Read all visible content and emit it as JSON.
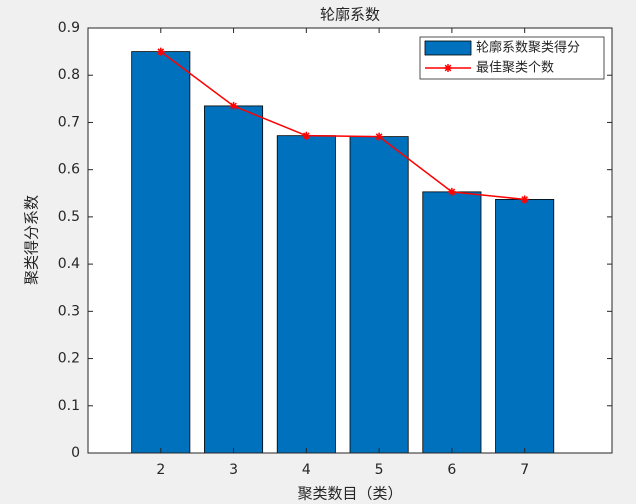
{
  "chart_data": {
    "type": "bar",
    "title": "轮廓系数",
    "xlabel": "聚类数目（类）",
    "ylabel": "聚类得分系数",
    "x": [
      2,
      3,
      4,
      5,
      6,
      7
    ],
    "series": [
      {
        "name": "轮廓系数聚类得分",
        "type": "bar",
        "color": "#0072bd",
        "values": [
          0.85,
          0.735,
          0.672,
          0.67,
          0.553,
          0.537
        ]
      },
      {
        "name": "最佳聚类个数",
        "type": "line",
        "color": "#ff0000",
        "marker": "*",
        "values": [
          0.85,
          0.735,
          0.672,
          0.67,
          0.553,
          0.537
        ]
      }
    ],
    "xlim": [
      1,
      8.2
    ],
    "xticks": [
      2,
      3,
      4,
      5,
      6,
      7
    ],
    "ylim": [
      0,
      0.9
    ],
    "yticks": [
      0,
      0.1,
      0.2,
      0.3,
      0.4,
      0.5,
      0.6,
      0.7,
      0.8,
      0.9
    ],
    "bar_width": 0.8,
    "legend": "northeast"
  }
}
